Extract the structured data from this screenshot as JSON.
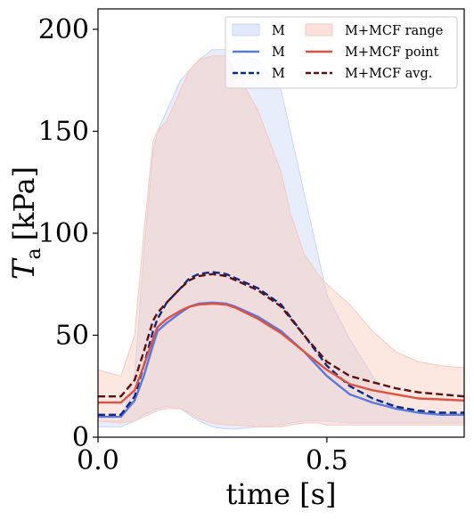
{
  "chart_data": {
    "type": "line",
    "xlabel": "time [s]",
    "ylabel_main": "T",
    "ylabel_sub": "a",
    "ylabel_unit": "[kPa]",
    "xlim": [
      0.0,
      0.8
    ],
    "ylim": [
      0,
      210
    ],
    "xticks": [
      0.0,
      0.5
    ],
    "xtick_labels": [
      "0.0",
      "0.5"
    ],
    "yticks": [
      0,
      50,
      100,
      150,
      200
    ],
    "ytick_labels": [
      "0",
      "50",
      "100",
      "150",
      "200"
    ],
    "grid": false,
    "legend_position": "top-right",
    "colors": {
      "m_range": "#c9d7f5",
      "mcf_range": "#f8c9bd",
      "m_point": "#5b78de",
      "m_avg": "#0d2b86",
      "mcf_point": "#dd5240",
      "mcf_avg": "#5e1010"
    },
    "series": [
      {
        "name": "M",
        "kind": "range",
        "color_key": "m_range",
        "x": [
          0.0,
          0.05,
          0.08,
          0.1,
          0.12,
          0.13,
          0.15,
          0.18,
          0.2,
          0.22,
          0.25,
          0.28,
          0.3,
          0.35,
          0.4,
          0.42,
          0.45,
          0.48,
          0.5,
          0.55,
          0.6,
          0.65,
          0.7,
          0.75,
          0.8
        ],
        "upper": [
          8,
          8,
          30,
          90,
          140,
          150,
          160,
          175,
          180,
          185,
          190,
          190,
          188,
          185,
          170,
          150,
          120,
          90,
          70,
          48,
          30,
          15,
          12,
          11,
          11
        ],
        "lower": [
          5,
          5,
          8,
          11,
          13,
          14,
          15,
          14,
          11,
          8,
          5,
          4,
          4,
          5,
          6,
          7,
          8,
          8,
          8,
          7,
          7,
          7,
          7,
          7,
          7
        ]
      },
      {
        "name": "M+MCF range",
        "kind": "range",
        "color_key": "mcf_range",
        "x": [
          0.0,
          0.05,
          0.08,
          0.1,
          0.12,
          0.13,
          0.15,
          0.18,
          0.2,
          0.22,
          0.25,
          0.28,
          0.3,
          0.35,
          0.4,
          0.42,
          0.45,
          0.48,
          0.5,
          0.55,
          0.6,
          0.65,
          0.7,
          0.75,
          0.8
        ],
        "upper": [
          33,
          30,
          50,
          100,
          145,
          150,
          155,
          170,
          180,
          185,
          187,
          187,
          180,
          160,
          130,
          110,
          90,
          80,
          75,
          65,
          52,
          42,
          37,
          35,
          34
        ],
        "lower": [
          8,
          7,
          8,
          10,
          12,
          13,
          14,
          14,
          12,
          9,
          7,
          6,
          6,
          5,
          5,
          6,
          7,
          7,
          6,
          6,
          6,
          6,
          6,
          6,
          6
        ]
      },
      {
        "name": "M",
        "kind": "line",
        "color_key": "m_point",
        "dash": false,
        "x": [
          0.0,
          0.05,
          0.08,
          0.1,
          0.12,
          0.13,
          0.15,
          0.18,
          0.2,
          0.22,
          0.25,
          0.28,
          0.3,
          0.35,
          0.4,
          0.45,
          0.5,
          0.55,
          0.6,
          0.65,
          0.7,
          0.75,
          0.8
        ],
        "values": [
          10,
          10,
          18,
          30,
          45,
          52,
          56,
          61,
          64,
          65.5,
          66,
          65.5,
          64,
          59,
          52,
          42,
          30,
          21,
          17,
          14,
          12,
          11,
          11
        ]
      },
      {
        "name": "M",
        "kind": "line",
        "color_key": "m_avg",
        "dash": true,
        "x": [
          0.0,
          0.05,
          0.08,
          0.1,
          0.12,
          0.13,
          0.15,
          0.18,
          0.2,
          0.22,
          0.25,
          0.28,
          0.3,
          0.35,
          0.4,
          0.45,
          0.5,
          0.55,
          0.6,
          0.65,
          0.7,
          0.75,
          0.8
        ],
        "values": [
          11,
          11,
          20,
          35,
          52,
          58,
          66,
          73,
          78,
          80,
          81,
          80,
          78,
          73,
          65,
          50,
          35,
          25,
          19,
          15,
          13,
          12,
          12
        ]
      },
      {
        "name": "M+MCF point",
        "kind": "line",
        "color_key": "mcf_point",
        "dash": false,
        "x": [
          0.0,
          0.05,
          0.08,
          0.1,
          0.12,
          0.13,
          0.15,
          0.18,
          0.2,
          0.22,
          0.25,
          0.28,
          0.3,
          0.35,
          0.4,
          0.45,
          0.5,
          0.55,
          0.6,
          0.65,
          0.7,
          0.75,
          0.8
        ],
        "values": [
          17,
          17,
          23,
          35,
          48,
          54,
          58,
          62,
          64,
          65,
          65.5,
          65,
          63.5,
          58,
          51,
          42,
          33,
          26,
          23,
          21,
          19,
          18.5,
          18
        ]
      },
      {
        "name": "M+MCF avg.",
        "kind": "line",
        "color_key": "mcf_avg",
        "dash": true,
        "x": [
          0.0,
          0.05,
          0.08,
          0.1,
          0.12,
          0.13,
          0.15,
          0.18,
          0.2,
          0.22,
          0.25,
          0.28,
          0.3,
          0.35,
          0.4,
          0.45,
          0.5,
          0.55,
          0.6,
          0.65,
          0.7,
          0.75,
          0.8
        ],
        "values": [
          20,
          20,
          28,
          42,
          57,
          61,
          66,
          73,
          77,
          79,
          80,
          79,
          77,
          72,
          64,
          50,
          37,
          30,
          27,
          24,
          22,
          21,
          20
        ]
      }
    ],
    "legend": [
      {
        "label": "M",
        "kind": "patch",
        "color_key": "m_range"
      },
      {
        "label": "M+MCF range",
        "kind": "patch",
        "color_key": "mcf_range"
      },
      {
        "label": "M",
        "kind": "line",
        "dash": false,
        "color_key": "m_point"
      },
      {
        "label": "M+MCF point",
        "kind": "line",
        "dash": false,
        "color_key": "mcf_point"
      },
      {
        "label": "M",
        "kind": "line",
        "dash": true,
        "color_key": "m_avg"
      },
      {
        "label": "M+MCF avg.",
        "kind": "line",
        "dash": true,
        "color_key": "mcf_avg"
      }
    ]
  }
}
